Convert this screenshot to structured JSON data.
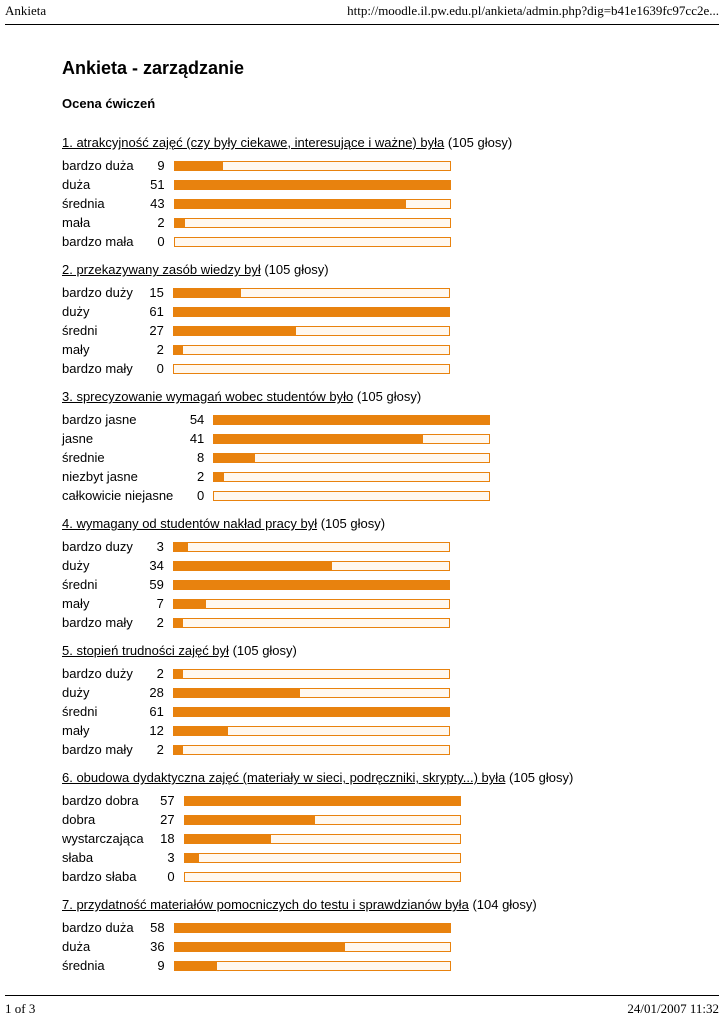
{
  "print_header": {
    "title": "Ankieta",
    "url": "http://moodle.il.pw.edu.pl/ankieta/admin.php?dig=b41e1639fc97cc2e..."
  },
  "print_footer": {
    "page": "1 of 3",
    "timestamp": "24/01/2007 11:32"
  },
  "page": {
    "title": "Ankieta - zarządzanie",
    "section": "Ocena ćwiczeń"
  },
  "colors": {
    "bar_fill": "#e8820e",
    "bar_border": "#e8820e",
    "bar_track_bg": "#fff8ef"
  },
  "chart_data": [
    {
      "type": "bar",
      "orientation": "horizontal",
      "title": "1. atrakcyjność zajęć (czy były ciekawe, interesujące i ważne) była",
      "votes": "(105 głosy)",
      "categories": [
        "bardzo duża",
        "duża",
        "średnia",
        "mała",
        "bardzo mała"
      ],
      "values": [
        9,
        51,
        43,
        2,
        0
      ],
      "xmax": 51
    },
    {
      "type": "bar",
      "orientation": "horizontal",
      "title": "2. przekazywany zasób wiedzy był",
      "votes": "(105 głosy)",
      "categories": [
        "bardzo duży",
        "duży",
        "średni",
        "mały",
        "bardzo mały"
      ],
      "values": [
        15,
        61,
        27,
        2,
        0
      ],
      "xmax": 61
    },
    {
      "type": "bar",
      "orientation": "horizontal",
      "title": "3. sprecyzowanie wymagań wobec studentów było",
      "votes": "(105 głosy)",
      "categories": [
        "bardzo jasne",
        "jasne",
        "średnie",
        "niezbyt jasne",
        "całkowicie niejasne"
      ],
      "values": [
        54,
        41,
        8,
        2,
        0
      ],
      "xmax": 54
    },
    {
      "type": "bar",
      "orientation": "horizontal",
      "title": "4. wymagany od studentów nakład pracy był",
      "votes": "(105 głosy)",
      "categories": [
        "bardzo duzy",
        "duży",
        "średni",
        "mały",
        "bardzo mały"
      ],
      "values": [
        3,
        34,
        59,
        7,
        2
      ],
      "xmax": 59
    },
    {
      "type": "bar",
      "orientation": "horizontal",
      "title": "5. stopień trudności zajęć był",
      "votes": "(105 głosy)",
      "categories": [
        "bardzo duży",
        "duży",
        "średni",
        "mały",
        "bardzo mały"
      ],
      "values": [
        2,
        28,
        61,
        12,
        2
      ],
      "xmax": 61
    },
    {
      "type": "bar",
      "orientation": "horizontal",
      "title": "6. obudowa dydaktyczna zajęć (materiały w sieci, podręczniki, skrypty...) była",
      "votes": "(105 głosy)",
      "categories": [
        "bardzo dobra",
        "dobra",
        "wystarczająca",
        "słaba",
        "bardzo słaba"
      ],
      "values": [
        57,
        27,
        18,
        3,
        0
      ],
      "xmax": 57
    },
    {
      "type": "bar",
      "orientation": "horizontal",
      "title": "7. przydatność materiałów pomocniczych do testu i sprawdzianów była",
      "votes": "(104 głosy)",
      "categories": [
        "bardzo duża",
        "duża",
        "średnia"
      ],
      "values": [
        58,
        36,
        9
      ],
      "xmax": 58
    }
  ]
}
